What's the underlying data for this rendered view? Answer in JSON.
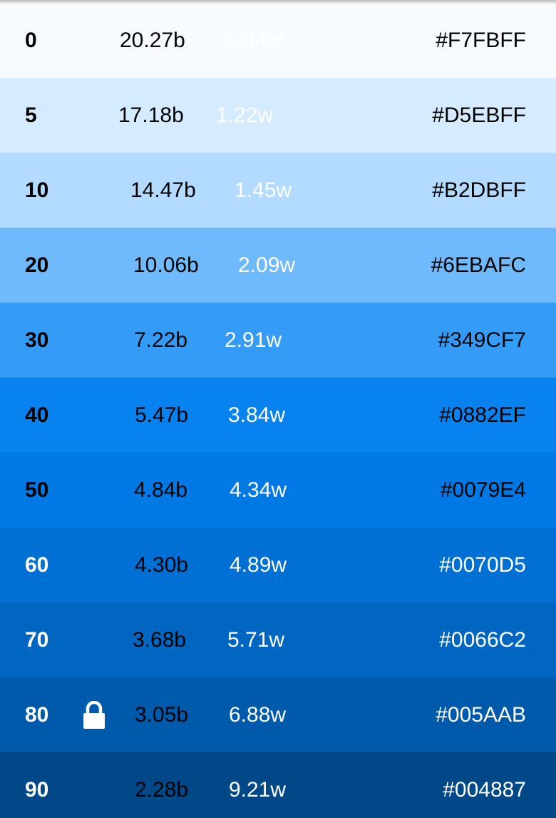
{
  "swatches": [
    {
      "shade": "0",
      "black": "20.27b",
      "white": "1.04w",
      "hex": "#F7FBFF",
      "bg": "#F7FBFF",
      "text": "#000000",
      "locked": false
    },
    {
      "shade": "5",
      "black": "17.18b",
      "white": "1.22w",
      "hex": "#D5EBFF",
      "bg": "#D5EBFF",
      "text": "#000000",
      "locked": false
    },
    {
      "shade": "10",
      "black": "14.47b",
      "white": "1.45w",
      "hex": "#B2DBFF",
      "bg": "#B2DBFF",
      "text": "#000000",
      "locked": false
    },
    {
      "shade": "20",
      "black": "10.06b",
      "white": "2.09w",
      "hex": "#6EBAFC",
      "bg": "#6EBAFC",
      "text": "#000000",
      "locked": false
    },
    {
      "shade": "30",
      "black": "7.22b",
      "white": "2.91w",
      "hex": "#349CF7",
      "bg": "#349CF7",
      "text": "#000000",
      "locked": false
    },
    {
      "shade": "40",
      "black": "5.47b",
      "white": "3.84w",
      "hex": "#0882EF",
      "bg": "#0882EF",
      "text": "#000000",
      "locked": false
    },
    {
      "shade": "50",
      "black": "4.84b",
      "white": "4.34w",
      "hex": "#0079E4",
      "bg": "#0079E4",
      "text": "#000000",
      "locked": false
    },
    {
      "shade": "60",
      "black": "4.30b",
      "white": "4.89w",
      "hex": "#0070D5",
      "bg": "#0070D5",
      "text": "#ffffff",
      "locked": false
    },
    {
      "shade": "70",
      "black": "3.68b",
      "white": "5.71w",
      "hex": "#0066C2",
      "bg": "#0066C2",
      "text": "#ffffff",
      "locked": false
    },
    {
      "shade": "80",
      "black": "3.05b",
      "white": "6.88w",
      "hex": "#005AAB",
      "bg": "#005AAB",
      "text": "#ffffff",
      "locked": true,
      "lock_icon": "lock-icon"
    },
    {
      "shade": "90",
      "black": "2.28b",
      "white": "9.21w",
      "hex": "#004887",
      "bg": "#004887",
      "text": "#ffffff",
      "locked": false
    }
  ]
}
